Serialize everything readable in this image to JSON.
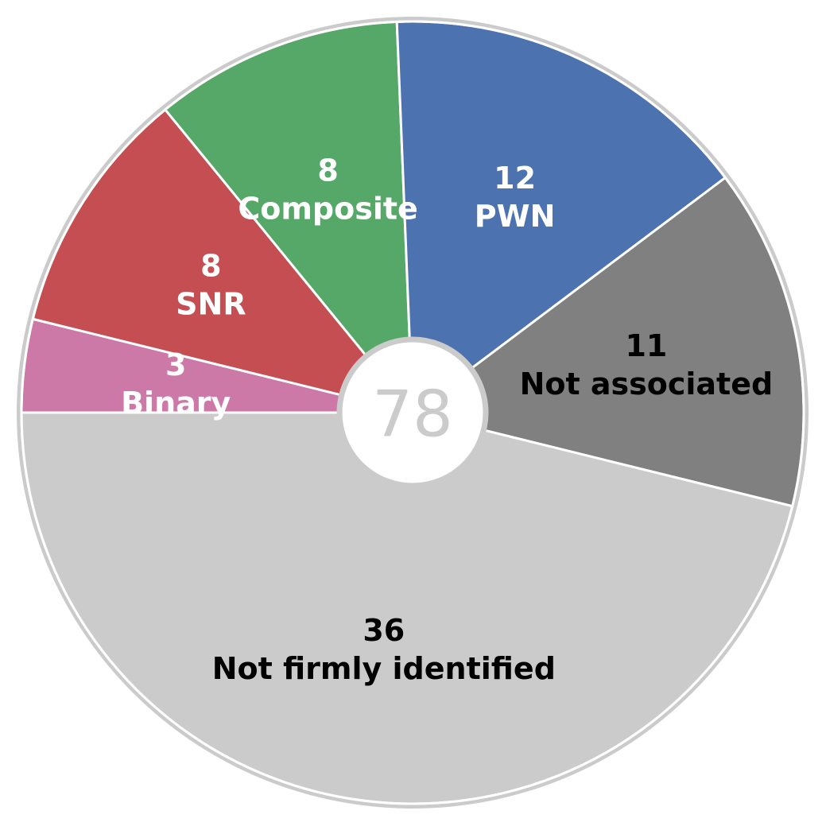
{
  "chart_data": {
    "type": "pie",
    "title": "",
    "total": "78",
    "start_angle_deg": 180,
    "direction": "clockwise",
    "slices": [
      {
        "label": "Binary",
        "count": "3",
        "value": 3,
        "color": "#CC79A7",
        "text_color": "#ffffff"
      },
      {
        "label": "SNR",
        "count": "8",
        "value": 8,
        "color": "#C44E52",
        "text_color": "#ffffff"
      },
      {
        "label": "Composite",
        "count": "8",
        "value": 8,
        "color": "#55A868",
        "text_color": "#ffffff"
      },
      {
        "label": "PWN",
        "count": "12",
        "value": 12,
        "color": "#4C72B0",
        "text_color": "#ffffff"
      },
      {
        "label": "Not associated",
        "count": "11",
        "value": 11,
        "color": "#808080",
        "text_color": "#000000"
      },
      {
        "label": "Not firmly identified",
        "count": "36",
        "value": 36,
        "color": "#CBCBCB",
        "text_color": "#000000"
      }
    ],
    "outline_color": "#CBCBCB",
    "total_color": "#CBCBCB"
  }
}
